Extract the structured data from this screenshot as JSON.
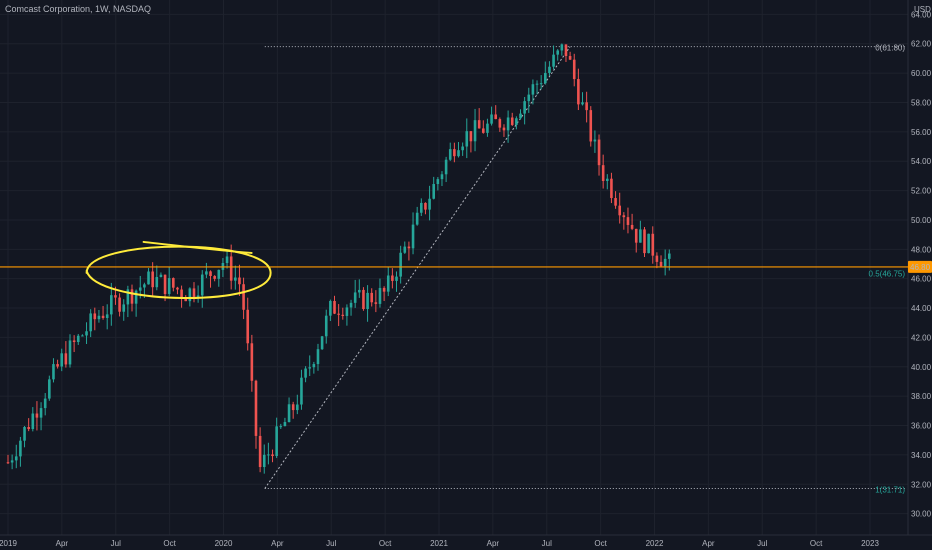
{
  "header": {
    "title": "Comcast Corporation, 1W, NASDAQ"
  },
  "price_axis": {
    "currency": "USD",
    "tick_labels": [
      "64.00",
      "62.00",
      "60.00",
      "58.00",
      "56.00",
      "54.00",
      "52.00",
      "50.00",
      "48.00",
      "46.00",
      "44.00",
      "42.00",
      "40.00",
      "38.00",
      "36.00",
      "34.00",
      "32.00",
      "30.00"
    ],
    "current_price_label": "46.80"
  },
  "time_axis": {
    "tick_labels": [
      "2019",
      "Apr",
      "Jul",
      "Oct",
      "2020",
      "Apr",
      "Jul",
      "Oct",
      "2021",
      "Apr",
      "Jul",
      "Oct",
      "2022",
      "Apr",
      "Jul",
      "Oct",
      "2023"
    ]
  },
  "fib": {
    "label_top": "0(61.80)",
    "label_mid": "0.5(46.75)",
    "label_bottom": "1(31.71)"
  },
  "colors": {
    "background": "#131722",
    "up": "#26a69a",
    "down": "#ef5350",
    "horizontal_line": "#ff9800",
    "annotation": "#ffeb3b",
    "text": "#b2b5be"
  },
  "chart_data": {
    "type": "candlestick",
    "title": "Comcast Corporation, 1W, NASDAQ",
    "ylim": [
      29.5,
      64.5
    ],
    "x_range": [
      "2019-01",
      "2023-01"
    ],
    "horizontal_line": 46.8,
    "fibonacci_retracement": {
      "level_0": 61.8,
      "level_0_5": 46.75,
      "level_1": 31.71
    },
    "anchors": [
      {
        "date": "2019-01",
        "close": 33.5
      },
      {
        "date": "2019-04",
        "close": 40.5
      },
      {
        "date": "2019-06",
        "close": 43.5
      },
      {
        "date": "2019-09",
        "close": 46.0
      },
      {
        "date": "2019-11",
        "close": 45.0
      },
      {
        "date": "2020-01",
        "close": 47.2
      },
      {
        "date": "2020-02",
        "close": 45.5
      },
      {
        "date": "2020-03",
        "close": 33.0
      },
      {
        "date": "2020-05",
        "close": 37.5
      },
      {
        "date": "2020-07",
        "close": 44.0
      },
      {
        "date": "2020-10",
        "close": 45.0
      },
      {
        "date": "2020-12",
        "close": 50.5
      },
      {
        "date": "2021-02",
        "close": 55.5
      },
      {
        "date": "2021-05",
        "close": 57.0
      },
      {
        "date": "2021-08",
        "close": 61.8
      },
      {
        "date": "2021-10",
        "close": 53.5
      },
      {
        "date": "2021-12",
        "close": 49.0
      },
      {
        "date": "2022-02",
        "close": 46.8
      }
    ]
  }
}
